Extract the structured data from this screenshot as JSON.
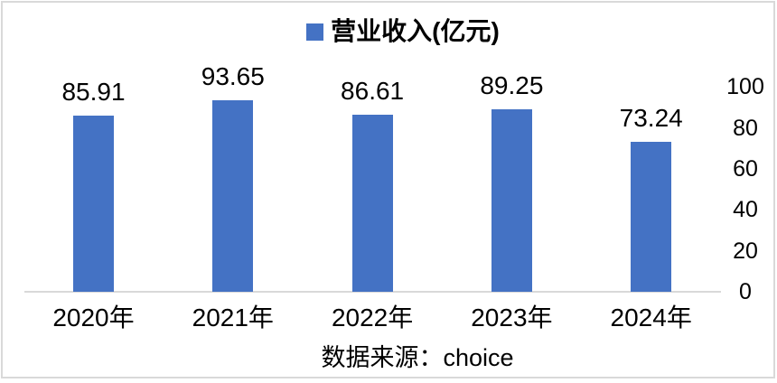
{
  "caption": "数据来源：choice",
  "chart_data": {
    "type": "bar",
    "title": "",
    "legend": "营业收入(亿元)",
    "legend_position": "top-center",
    "categories": [
      "2020年",
      "2021年",
      "2022年",
      "2023年",
      "2024年"
    ],
    "values": [
      85.91,
      93.65,
      86.61,
      89.25,
      73.24
    ],
    "value_labels": [
      "85.91",
      "93.65",
      "86.61",
      "89.25",
      "73.24"
    ],
    "ylim": [
      0,
      100
    ],
    "yticks": [
      0,
      20,
      40,
      60,
      80,
      100
    ],
    "ytick_labels": [
      "0",
      "20",
      "40",
      "60",
      "80",
      "100"
    ],
    "y_axis_side": "right",
    "grid": false,
    "bar_color": "#4472C4",
    "axis_line_color": "#D9D9D9",
    "text_color": "#000000"
  }
}
